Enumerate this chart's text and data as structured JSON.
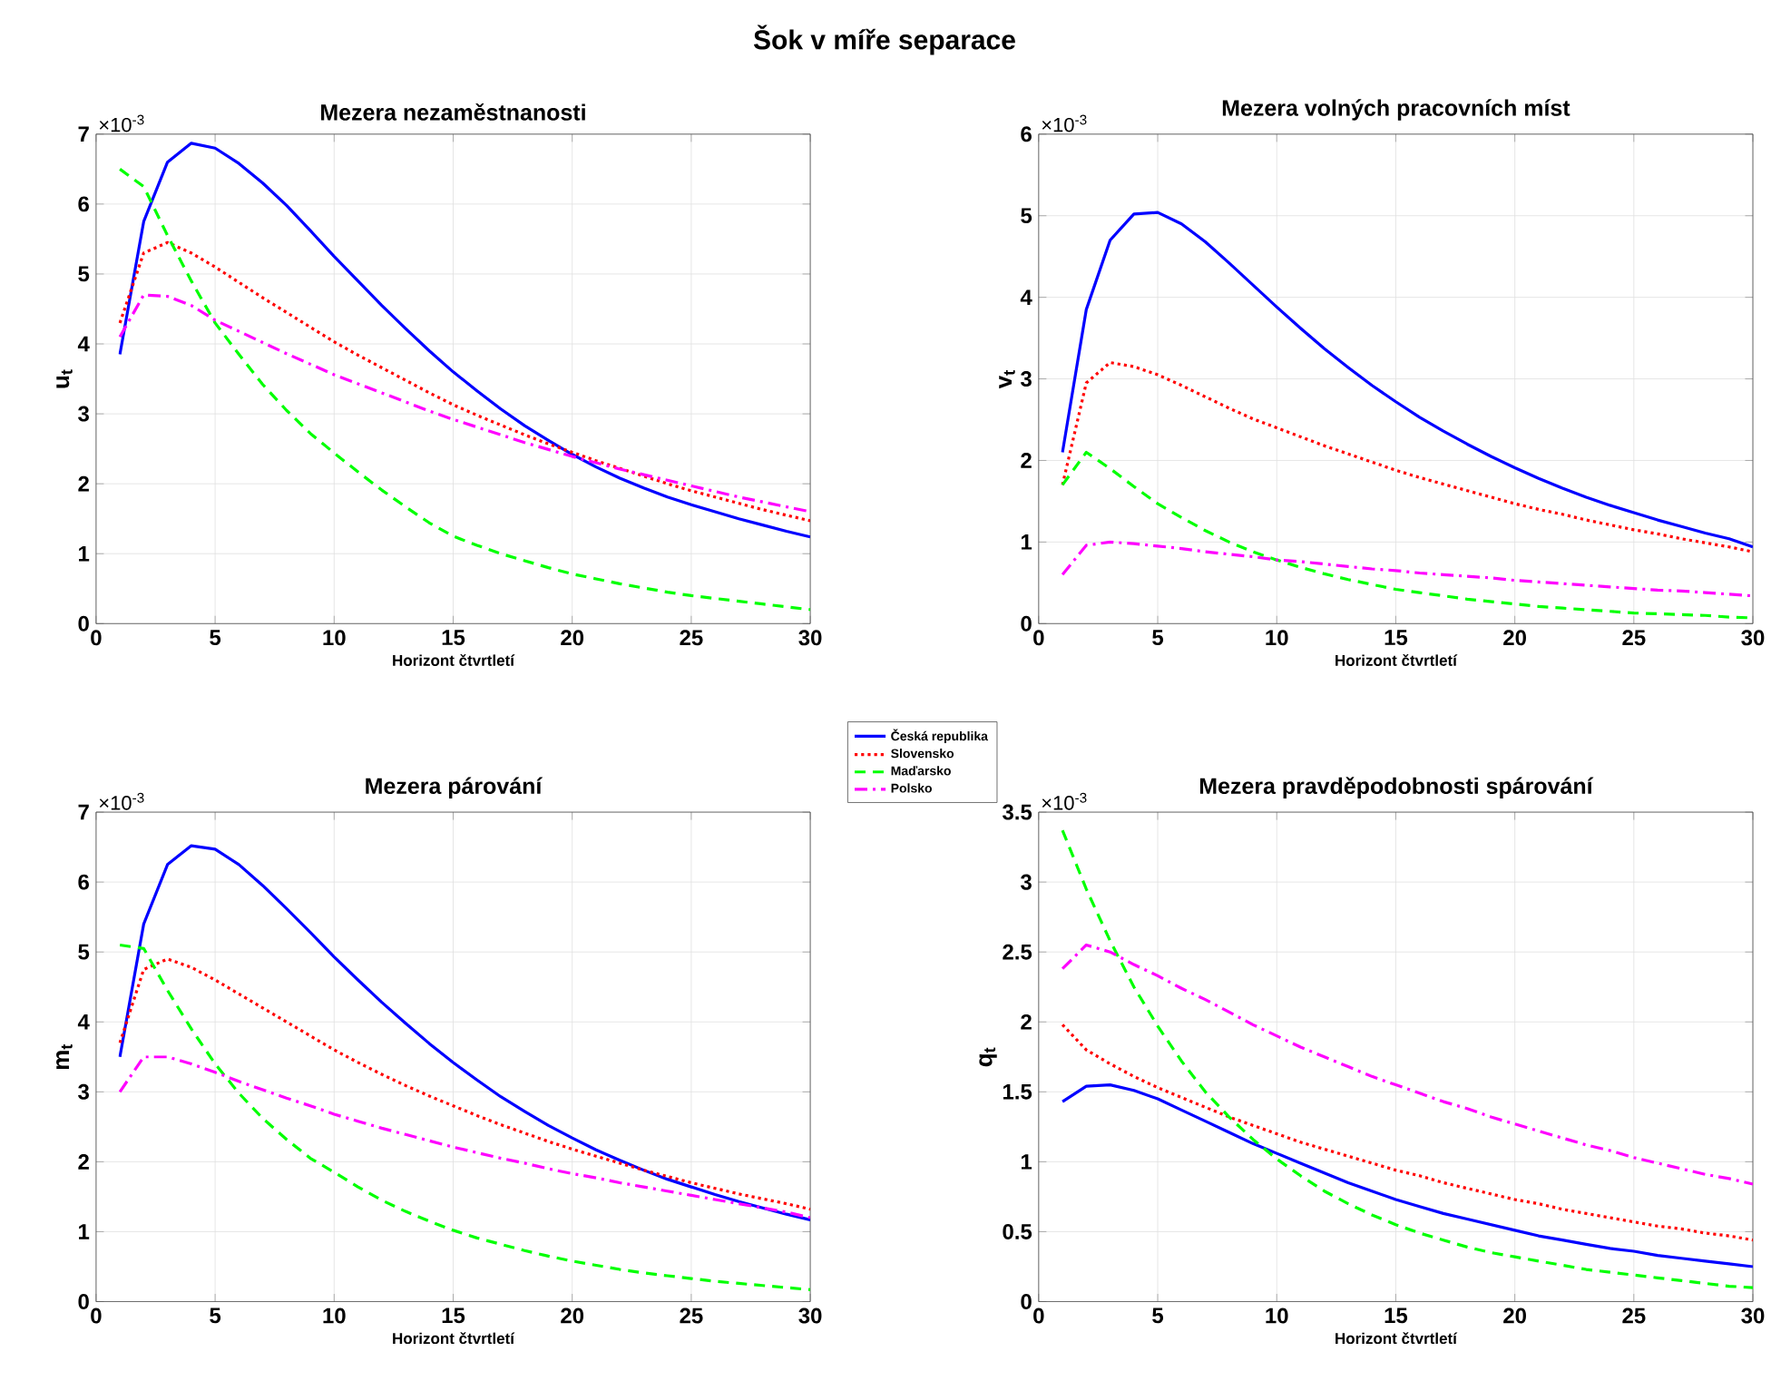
{
  "chart_data": [
    {
      "type": "line",
      "title": "Mezera nezaměstnanosti",
      "xlabel": "Horizont čtvrtletí",
      "ylabel": "u$_{t}$",
      "annotations": [
        "Šok v míře separace",
        "×10$^{-3}$"
      ],
      "legend": "bottom right",
      "grid": true,
      "xlim": [
        0,
        30
      ],
      "xticks": [
        0,
        5,
        10,
        15,
        20,
        25,
        30
      ],
      "ylim": [
        0,
        7
      ],
      "yticks": [
        0,
        1,
        2,
        3,
        4,
        5,
        6,
        7
      ],
      "x": [
        1,
        2,
        3,
        4,
        5,
        6,
        7,
        8,
        9,
        10,
        11,
        12,
        13,
        14,
        15,
        16,
        17,
        18,
        19,
        20,
        21,
        22,
        23,
        24,
        25,
        26,
        27,
        28,
        29,
        30
      ],
      "series": [
        {
          "name": "Česká republika",
          "color": "#0000ff",
          "line_style": "solid",
          "values": [
            3.85,
            5.75,
            6.6,
            6.87,
            6.8,
            6.58,
            6.3,
            5.98,
            5.62,
            5.25,
            4.9,
            4.55,
            4.22,
            3.9,
            3.6,
            3.33,
            3.07,
            2.83,
            2.62,
            2.42,
            2.24,
            2.08,
            1.94,
            1.81,
            1.7,
            1.6,
            1.5,
            1.41,
            1.32,
            1.24
          ]
        },
        {
          "name": "Slovensko",
          "color": "#ff0000",
          "line_style": "dotted",
          "values": [
            4.3,
            5.3,
            5.45,
            5.3,
            5.1,
            4.88,
            4.66,
            4.45,
            4.24,
            4.03,
            3.84,
            3.66,
            3.48,
            3.3,
            3.13,
            2.98,
            2.84,
            2.7,
            2.57,
            2.45,
            2.33,
            2.22,
            2.11,
            2.0,
            1.9,
            1.81,
            1.72,
            1.63,
            1.55,
            1.47
          ]
        },
        {
          "name": "Maďarsko",
          "color": "#00ff00",
          "line_style": "dashed",
          "values": [
            6.5,
            6.25,
            5.55,
            4.9,
            4.3,
            3.85,
            3.42,
            3.05,
            2.72,
            2.44,
            2.17,
            1.91,
            1.67,
            1.44,
            1.25,
            1.12,
            1.0,
            0.9,
            0.8,
            0.71,
            0.64,
            0.57,
            0.51,
            0.45,
            0.4,
            0.36,
            0.32,
            0.28,
            0.24,
            0.2
          ]
        },
        {
          "name": "Polsko",
          "color": "#ff00ff",
          "line_style": "dashdot",
          "values": [
            4.1,
            4.7,
            4.68,
            4.55,
            4.34,
            4.18,
            4.02,
            3.86,
            3.71,
            3.56,
            3.43,
            3.3,
            3.17,
            3.04,
            2.92,
            2.81,
            2.7,
            2.59,
            2.49,
            2.39,
            2.3,
            2.21,
            2.13,
            2.05,
            1.97,
            1.89,
            1.81,
            1.74,
            1.67,
            1.6
          ]
        }
      ]
    },
    {
      "type": "line",
      "title": "Mezera volných pracovních míst",
      "xlabel": "Horizont čtvrtletí",
      "ylabel": "v$_{t}$",
      "annotations": [
        "×10$^{-3}$"
      ],
      "grid": true,
      "xlim": [
        0,
        30
      ],
      "xticks": [
        0,
        5,
        10,
        15,
        20,
        25,
        30
      ],
      "ylim": [
        0,
        6
      ],
      "yticks": [
        0,
        1,
        2,
        3,
        4,
        5,
        6
      ],
      "x": [
        1,
        2,
        3,
        4,
        5,
        6,
        7,
        8,
        9,
        10,
        11,
        12,
        13,
        14,
        15,
        16,
        17,
        18,
        19,
        20,
        21,
        22,
        23,
        24,
        25,
        26,
        27,
        28,
        29,
        30
      ],
      "series": [
        {
          "color": "#0000ff",
          "line_style": "solid",
          "values": [
            2.1,
            3.85,
            4.7,
            5.02,
            5.04,
            4.9,
            4.68,
            4.42,
            4.15,
            3.88,
            3.62,
            3.37,
            3.14,
            2.92,
            2.72,
            2.53,
            2.36,
            2.2,
            2.05,
            1.91,
            1.78,
            1.66,
            1.55,
            1.45,
            1.36,
            1.27,
            1.19,
            1.11,
            1.04,
            0.94
          ]
        },
        {
          "color": "#ff0000",
          "line_style": "dotted",
          "values": [
            1.7,
            2.95,
            3.2,
            3.15,
            3.05,
            2.92,
            2.78,
            2.64,
            2.51,
            2.4,
            2.29,
            2.18,
            2.08,
            1.98,
            1.88,
            1.79,
            1.71,
            1.63,
            1.55,
            1.47,
            1.4,
            1.34,
            1.27,
            1.21,
            1.15,
            1.1,
            1.04,
            0.99,
            0.94,
            0.88
          ]
        },
        {
          "color": "#00ff00",
          "line_style": "dashed",
          "values": [
            1.7,
            2.1,
            1.9,
            1.68,
            1.47,
            1.3,
            1.14,
            1.0,
            0.88,
            0.78,
            0.69,
            0.61,
            0.54,
            0.48,
            0.42,
            0.38,
            0.34,
            0.3,
            0.27,
            0.24,
            0.21,
            0.19,
            0.17,
            0.15,
            0.13,
            0.12,
            0.11,
            0.1,
            0.08,
            0.07
          ]
        },
        {
          "color": "#ff00ff",
          "line_style": "dashdot",
          "values": [
            0.6,
            0.96,
            1.0,
            0.98,
            0.95,
            0.92,
            0.88,
            0.85,
            0.82,
            0.78,
            0.76,
            0.73,
            0.7,
            0.67,
            0.65,
            0.62,
            0.6,
            0.58,
            0.56,
            0.53,
            0.51,
            0.49,
            0.47,
            0.45,
            0.43,
            0.41,
            0.4,
            0.38,
            0.36,
            0.34
          ]
        }
      ]
    },
    {
      "type": "line",
      "title": "Mezera párování",
      "xlabel": "Horizont čtvrtletí",
      "ylabel": "m$_{t}$",
      "annotations": [
        "×10$^{-3}$"
      ],
      "grid": true,
      "xlim": [
        0,
        30
      ],
      "xticks": [
        0,
        5,
        10,
        15,
        20,
        25,
        30
      ],
      "ylim": [
        0,
        7
      ],
      "yticks": [
        0,
        1,
        2,
        3,
        4,
        5,
        6,
        7
      ],
      "x": [
        1,
        2,
        3,
        4,
        5,
        6,
        7,
        8,
        9,
        10,
        11,
        12,
        13,
        14,
        15,
        16,
        17,
        18,
        19,
        20,
        21,
        22,
        23,
        24,
        25,
        26,
        27,
        28,
        29,
        30
      ],
      "series": [
        {
          "color": "#0000ff",
          "line_style": "solid",
          "values": [
            3.5,
            5.4,
            6.25,
            6.52,
            6.47,
            6.25,
            5.95,
            5.62,
            5.28,
            4.93,
            4.6,
            4.28,
            3.98,
            3.69,
            3.42,
            3.17,
            2.93,
            2.72,
            2.52,
            2.34,
            2.17,
            2.02,
            1.88,
            1.75,
            1.64,
            1.53,
            1.43,
            1.34,
            1.25,
            1.17
          ]
        },
        {
          "color": "#ff0000",
          "line_style": "dotted",
          "values": [
            3.7,
            4.75,
            4.9,
            4.78,
            4.6,
            4.4,
            4.2,
            4.0,
            3.8,
            3.6,
            3.42,
            3.25,
            3.09,
            2.94,
            2.8,
            2.66,
            2.53,
            2.41,
            2.29,
            2.18,
            2.08,
            1.98,
            1.88,
            1.79,
            1.7,
            1.62,
            1.54,
            1.47,
            1.4,
            1.32
          ]
        },
        {
          "color": "#00ff00",
          "line_style": "dashed",
          "values": [
            5.1,
            5.05,
            4.45,
            3.9,
            3.4,
            2.98,
            2.62,
            2.32,
            2.05,
            1.85,
            1.64,
            1.45,
            1.29,
            1.15,
            1.02,
            0.91,
            0.82,
            0.73,
            0.65,
            0.58,
            0.52,
            0.46,
            0.41,
            0.37,
            0.33,
            0.29,
            0.26,
            0.23,
            0.2,
            0.17
          ]
        },
        {
          "color": "#ff00ff",
          "line_style": "dashdot",
          "values": [
            3.0,
            3.5,
            3.5,
            3.4,
            3.28,
            3.15,
            3.03,
            2.91,
            2.8,
            2.68,
            2.58,
            2.48,
            2.39,
            2.3,
            2.21,
            2.13,
            2.05,
            1.98,
            1.9,
            1.83,
            1.77,
            1.7,
            1.64,
            1.58,
            1.52,
            1.46,
            1.4,
            1.34,
            1.28,
            1.2
          ]
        }
      ]
    },
    {
      "type": "line",
      "title": "Mezera pravděpodobnosti spárování",
      "xlabel": "Horizont čtvrtletí",
      "ylabel": "q$_{t}$",
      "annotations": [
        "×10$^{-3}$"
      ],
      "grid": true,
      "xlim": [
        0,
        30
      ],
      "xticks": [
        0,
        5,
        10,
        15,
        20,
        25,
        30
      ],
      "ylim": [
        0,
        3.5
      ],
      "yticks": [
        0,
        0.5,
        1,
        1.5,
        2,
        2.5,
        3,
        3.5
      ],
      "x": [
        1,
        2,
        3,
        4,
        5,
        6,
        7,
        8,
        9,
        10,
        11,
        12,
        13,
        14,
        15,
        16,
        17,
        18,
        19,
        20,
        21,
        22,
        23,
        24,
        25,
        26,
        27,
        28,
        29,
        30
      ],
      "series": [
        {
          "color": "#0000ff",
          "line_style": "solid",
          "values": [
            1.43,
            1.54,
            1.55,
            1.51,
            1.45,
            1.37,
            1.29,
            1.21,
            1.13,
            1.06,
            0.99,
            0.92,
            0.85,
            0.79,
            0.73,
            0.68,
            0.63,
            0.59,
            0.55,
            0.51,
            0.47,
            0.44,
            0.41,
            0.38,
            0.36,
            0.33,
            0.31,
            0.29,
            0.27,
            0.25
          ]
        },
        {
          "color": "#ff0000",
          "line_style": "dotted",
          "values": [
            1.98,
            1.8,
            1.7,
            1.61,
            1.53,
            1.46,
            1.39,
            1.32,
            1.26,
            1.2,
            1.14,
            1.09,
            1.04,
            0.99,
            0.94,
            0.9,
            0.85,
            0.81,
            0.77,
            0.73,
            0.7,
            0.66,
            0.63,
            0.6,
            0.57,
            0.54,
            0.52,
            0.49,
            0.47,
            0.44
          ]
        },
        {
          "color": "#00ff00",
          "line_style": "dashed",
          "values": [
            3.37,
            2.95,
            2.58,
            2.25,
            1.97,
            1.72,
            1.5,
            1.32,
            1.16,
            1.02,
            0.9,
            0.79,
            0.7,
            0.62,
            0.55,
            0.49,
            0.44,
            0.39,
            0.35,
            0.32,
            0.29,
            0.26,
            0.23,
            0.21,
            0.19,
            0.17,
            0.15,
            0.13,
            0.11,
            0.1
          ]
        },
        {
          "color": "#ff00ff",
          "line_style": "dashdot",
          "values": [
            2.38,
            2.55,
            2.5,
            2.41,
            2.33,
            2.24,
            2.16,
            2.07,
            1.98,
            1.9,
            1.82,
            1.75,
            1.68,
            1.61,
            1.55,
            1.49,
            1.43,
            1.38,
            1.32,
            1.27,
            1.22,
            1.17,
            1.12,
            1.08,
            1.03,
            0.99,
            0.95,
            0.91,
            0.88,
            0.84
          ]
        }
      ]
    }
  ]
}
